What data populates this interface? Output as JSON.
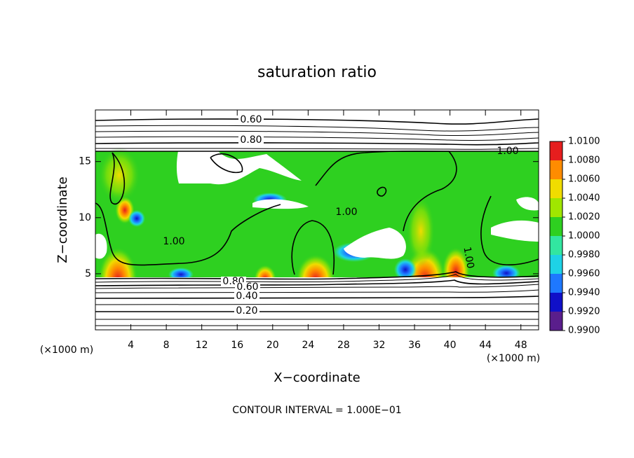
{
  "chart_data": {
    "type": "contour",
    "title": "saturation ratio",
    "x_label": "X−coordinate",
    "y_label": "Z−coordinate",
    "x_unit": "(×1000 m)",
    "annotation": "CONTOUR INTERVAL = 1.000E−01",
    "xlim": [
      0,
      50
    ],
    "ylim": [
      0,
      19.6
    ],
    "xticks": [
      4,
      8,
      12,
      16,
      20,
      24,
      28,
      32,
      36,
      40,
      44,
      48
    ],
    "yticks": [
      5,
      10,
      15
    ],
    "contour_labels": [
      "0.60",
      "0.80",
      "1.00",
      "1.00",
      "1.00",
      "1.00",
      "0.80",
      "0.60",
      "0.40",
      "0.20"
    ],
    "colorbar": {
      "colors": [
        "#5a1e8c",
        "#1010c8",
        "#1e78ff",
        "#1ed2e6",
        "#32e6a0",
        "#2ed020",
        "#a0e600",
        "#f0dc00",
        "#ff8c00",
        "#e61e1e"
      ],
      "ticks": [
        {
          "value": 0.99,
          "label": "0.9900"
        },
        {
          "value": 0.992,
          "label": "0.9920"
        },
        {
          "value": 0.994,
          "label": "0.9940"
        },
        {
          "value": 0.996,
          "label": "0.9960"
        },
        {
          "value": 0.998,
          "label": "0.9980"
        },
        {
          "value": 1.0,
          "label": "1.0000"
        },
        {
          "value": 1.002,
          "label": "1.0020"
        },
        {
          "value": 1.004,
          "label": "1.0040"
        },
        {
          "value": 1.006,
          "label": "1.0060"
        },
        {
          "value": 1.008,
          "label": "1.0080"
        },
        {
          "value": 1.01,
          "label": "1.0100"
        }
      ]
    }
  }
}
